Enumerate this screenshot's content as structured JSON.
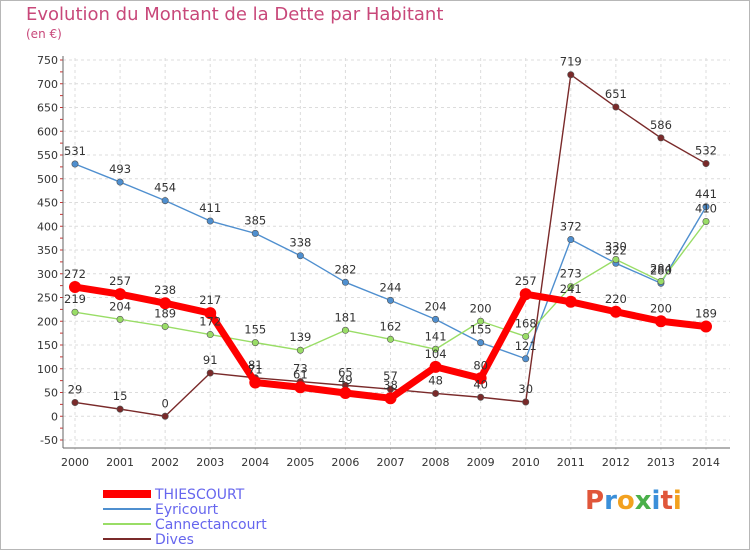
{
  "page": {
    "title": "Evolution du Montant de la Dette par Habitant",
    "subtitle": "(en €)"
  },
  "brand": {
    "letters": [
      "P",
      "r",
      "o",
      "x",
      "i",
      "t",
      "i"
    ],
    "colors": [
      "#e0563a",
      "#3a8fd9",
      "#f2a11f",
      "#4ab04a",
      "#3a8fd9",
      "#e0563a",
      "#f2a11f"
    ]
  },
  "chart_data": {
    "type": "line",
    "x": [
      "2000",
      "2001",
      "2002",
      "2003",
      "2004",
      "2005",
      "2006",
      "2007",
      "2008",
      "2009",
      "2010",
      "2011",
      "2012",
      "2013",
      "2014"
    ],
    "ylim": [
      -50,
      750
    ],
    "yticks": [
      "-50",
      "0",
      "50",
      "100",
      "150",
      "200",
      "250",
      "300",
      "350",
      "400",
      "450",
      "500",
      "550",
      "600",
      "650",
      "700",
      "750"
    ],
    "grid": true,
    "legend_position": "bottom-left",
    "series": [
      {
        "name": "THIESCOURT",
        "color": "#ff0000",
        "values": [
          272,
          257,
          238,
          217,
          71,
          61,
          49,
          38,
          104,
          80,
          257,
          241,
          220,
          200,
          189
        ],
        "labels": [
          "272",
          "257",
          "238",
          "217",
          "71",
          "61",
          "49",
          "38",
          "104",
          "80",
          "257",
          "241",
          "220",
          "200",
          "189"
        ]
      },
      {
        "name": "Eyricourt",
        "color": "#4f8fcf",
        "values": [
          531,
          493,
          454,
          411,
          385,
          338,
          282,
          244,
          204,
          155,
          121,
          372,
          322,
          280,
          441
        ],
        "labels": [
          "531",
          "493",
          "454",
          "411",
          "385",
          "338",
          "282",
          "244",
          "204",
          "155",
          "121",
          "372",
          "322",
          "280",
          "441"
        ]
      },
      {
        "name": "Cannectancourt",
        "color": "#99dd66",
        "values": [
          219,
          204,
          189,
          172,
          155,
          139,
          181,
          162,
          141,
          200,
          168,
          273,
          330,
          284,
          410
        ],
        "labels": [
          "219",
          "204",
          "189",
          "172",
          "155",
          "139",
          "181",
          "162",
          "141",
          "200",
          "168",
          "273",
          "330",
          "284",
          "410"
        ]
      },
      {
        "name": "Dives",
        "color": "#7a2a2a",
        "values": [
          29,
          15,
          0,
          91,
          81,
          73,
          65,
          57,
          48,
          40,
          30,
          719,
          651,
          586,
          532
        ],
        "labels": [
          "29",
          "15",
          "0",
          "91",
          "81",
          "73",
          "65",
          "57",
          "48",
          "40",
          "30",
          "719",
          "651",
          "586",
          "532"
        ]
      }
    ]
  }
}
